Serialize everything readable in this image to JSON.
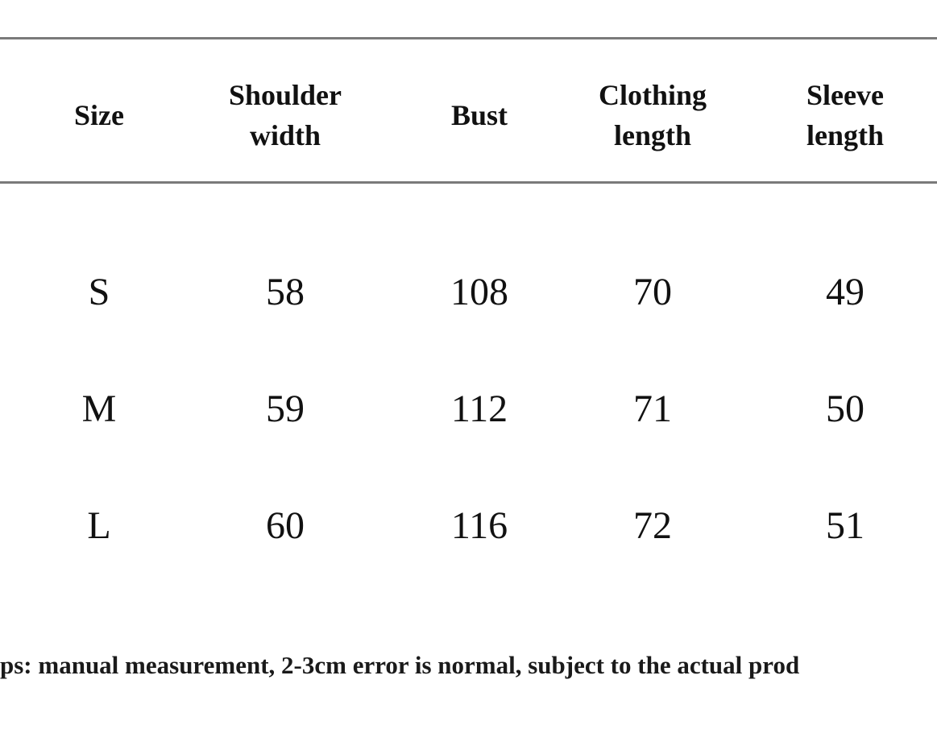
{
  "table": {
    "header": [
      "Size",
      "Shoulder width",
      "Bust",
      "Clothing length",
      "Sleeve length"
    ],
    "rows": [
      [
        "S",
        58,
        108,
        70,
        49
      ],
      [
        "M",
        59,
        112,
        71,
        50
      ],
      [
        "L",
        60,
        116,
        72,
        51
      ]
    ]
  },
  "footer": {
    "note": "ps: manual measurement, 2-3cm error is normal, subject to the actual prod"
  }
}
